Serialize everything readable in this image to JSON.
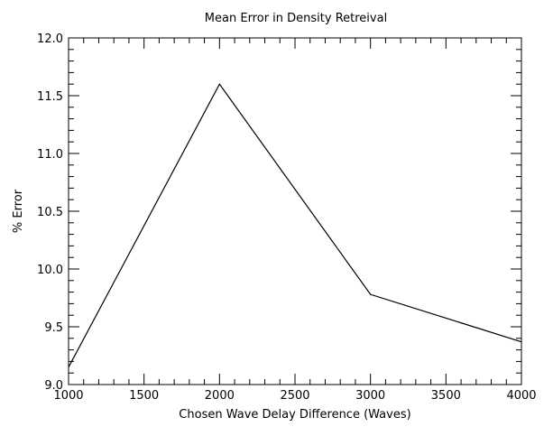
{
  "chart_data": {
    "type": "line",
    "title": "Mean Error in Density Retreival",
    "xlabel": "Chosen Wave Delay Difference (Waves)",
    "ylabel": "% Error",
    "xlim": [
      1000,
      4000
    ],
    "ylim": [
      9.0,
      12.0
    ],
    "x_ticks": [
      1000,
      1500,
      2000,
      2500,
      3000,
      3500,
      4000
    ],
    "y_ticks": [
      "9.0",
      "9.5",
      "10.0",
      "10.5",
      "11.0",
      "11.5",
      "12.0"
    ],
    "grid": false,
    "series": [
      {
        "x": [
          1000,
          2000,
          3000,
          4000
        ],
        "y": [
          9.15,
          11.6,
          9.78,
          9.37
        ]
      }
    ],
    "colors": {
      "line": "#000000",
      "axes": "#000000",
      "background": "#ffffff"
    }
  }
}
